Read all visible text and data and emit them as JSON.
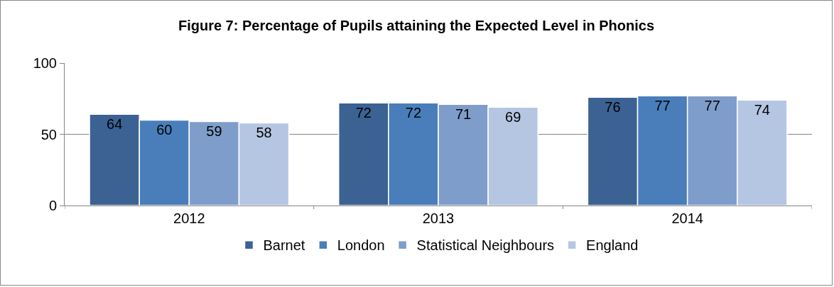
{
  "chart_data": {
    "type": "bar",
    "title": "Figure 7: Percentage of Pupils attaining the Expected Level in Phonics",
    "categories": [
      "2012",
      "2013",
      "2014"
    ],
    "series": [
      {
        "name": "Barnet",
        "color": "#3b6292",
        "values": [
          64,
          72,
          76
        ]
      },
      {
        "name": "London",
        "color": "#4a7ebb",
        "values": [
          60,
          72,
          77
        ]
      },
      {
        "name": "Statistical Neighbours",
        "color": "#7f9dcb",
        "values": [
          59,
          71,
          77
        ]
      },
      {
        "name": "England",
        "color": "#b5c6e2",
        "values": [
          58,
          69,
          74
        ]
      }
    ],
    "ylim": [
      0,
      100
    ],
    "yticks": [
      0,
      50,
      100
    ],
    "grid": "y",
    "legend": "bottom",
    "data_labels": true
  }
}
